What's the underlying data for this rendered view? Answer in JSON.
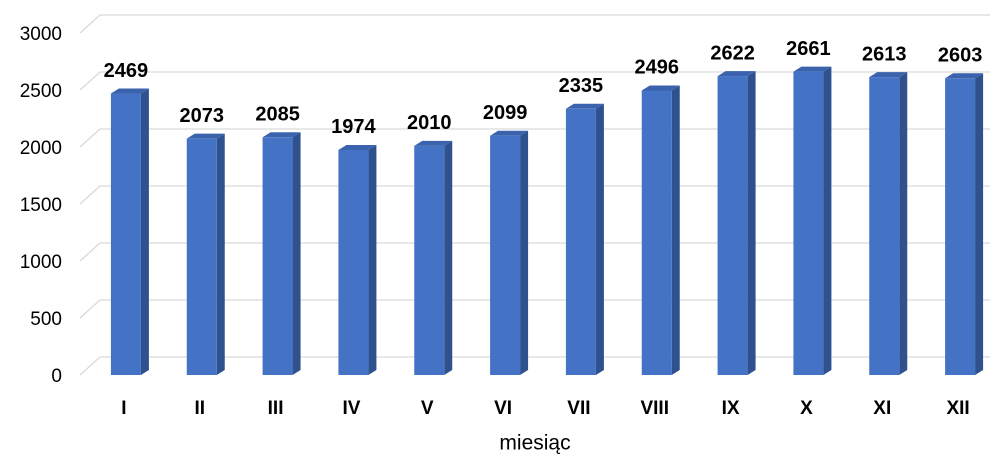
{
  "chart_data": {
    "type": "bar3d",
    "x_label": "miesiąc",
    "categories": [
      "I",
      "II",
      "III",
      "IV",
      "V",
      "VI",
      "VII",
      "VIII",
      "IX",
      "X",
      "XI",
      "XII"
    ],
    "values": [
      2469,
      2073,
      2085,
      1974,
      2010,
      2099,
      2335,
      2496,
      2622,
      2661,
      2613,
      2603
    ],
    "color": "#4472c4",
    "ylim": [
      0,
      3000
    ],
    "yticks": [
      0,
      500,
      1000,
      1500,
      2000,
      2500,
      3000
    ],
    "grid": true
  }
}
